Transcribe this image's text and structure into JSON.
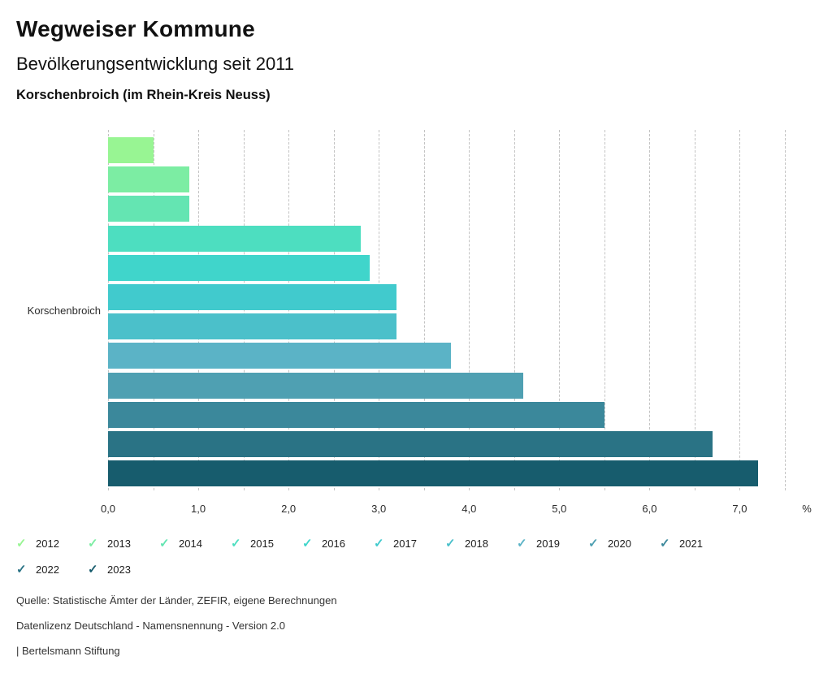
{
  "header": {
    "title": "Wegweiser Kommune",
    "subtitle": "Bevölkerungsentwicklung seit 2011",
    "location": "Korschenbroich (im Rhein-Kreis Neuss)"
  },
  "chart_data": {
    "type": "bar",
    "orientation": "horizontal",
    "title": "Bevölkerungsentwicklung seit 2011",
    "categories": [
      "Korschenbroich"
    ],
    "xlabel": "%",
    "xlim": [
      0,
      7.5
    ],
    "grid_step": 0.5,
    "grid": true,
    "legend_position": "bottom",
    "x_ticks": [
      {
        "value": 0,
        "label": "0,0"
      },
      {
        "value": 1,
        "label": "1,0"
      },
      {
        "value": 2,
        "label": "2,0"
      },
      {
        "value": 3,
        "label": "3,0"
      },
      {
        "value": 4,
        "label": "4,0"
      },
      {
        "value": 5,
        "label": "5,0"
      },
      {
        "value": 6,
        "label": "6,0"
      },
      {
        "value": 7,
        "label": "7,0"
      }
    ],
    "series": [
      {
        "name": "2012",
        "value": 0.5,
        "color": "#98F593"
      },
      {
        "name": "2013",
        "value": 0.9,
        "color": "#7CEDA3"
      },
      {
        "name": "2014",
        "value": 0.9,
        "color": "#64E5B2"
      },
      {
        "name": "2015",
        "value": 2.8,
        "color": "#4DDEC0"
      },
      {
        "name": "2016",
        "value": 2.9,
        "color": "#40D5CB"
      },
      {
        "name": "2017",
        "value": 3.2,
        "color": "#41CACD"
      },
      {
        "name": "2018",
        "value": 3.2,
        "color": "#4BC0CA"
      },
      {
        "name": "2019",
        "value": 3.8,
        "color": "#5BB3C6"
      },
      {
        "name": "2020",
        "value": 4.6,
        "color": "#4FA0B2"
      },
      {
        "name": "2021",
        "value": 5.5,
        "color": "#3B889B"
      },
      {
        "name": "2022",
        "value": 6.7,
        "color": "#2A7385"
      },
      {
        "name": "2023",
        "value": 7.2,
        "color": "#175C6D"
      }
    ]
  },
  "legend": {
    "check_icon": "✓"
  },
  "footer": {
    "source": "Quelle: Statistische Ämter der Länder, ZEFIR, eigene Berechnungen",
    "license": "Datenlizenz Deutschland - Namensnennung - Version 2.0",
    "attribution": "| Bertelsmann Stiftung"
  }
}
